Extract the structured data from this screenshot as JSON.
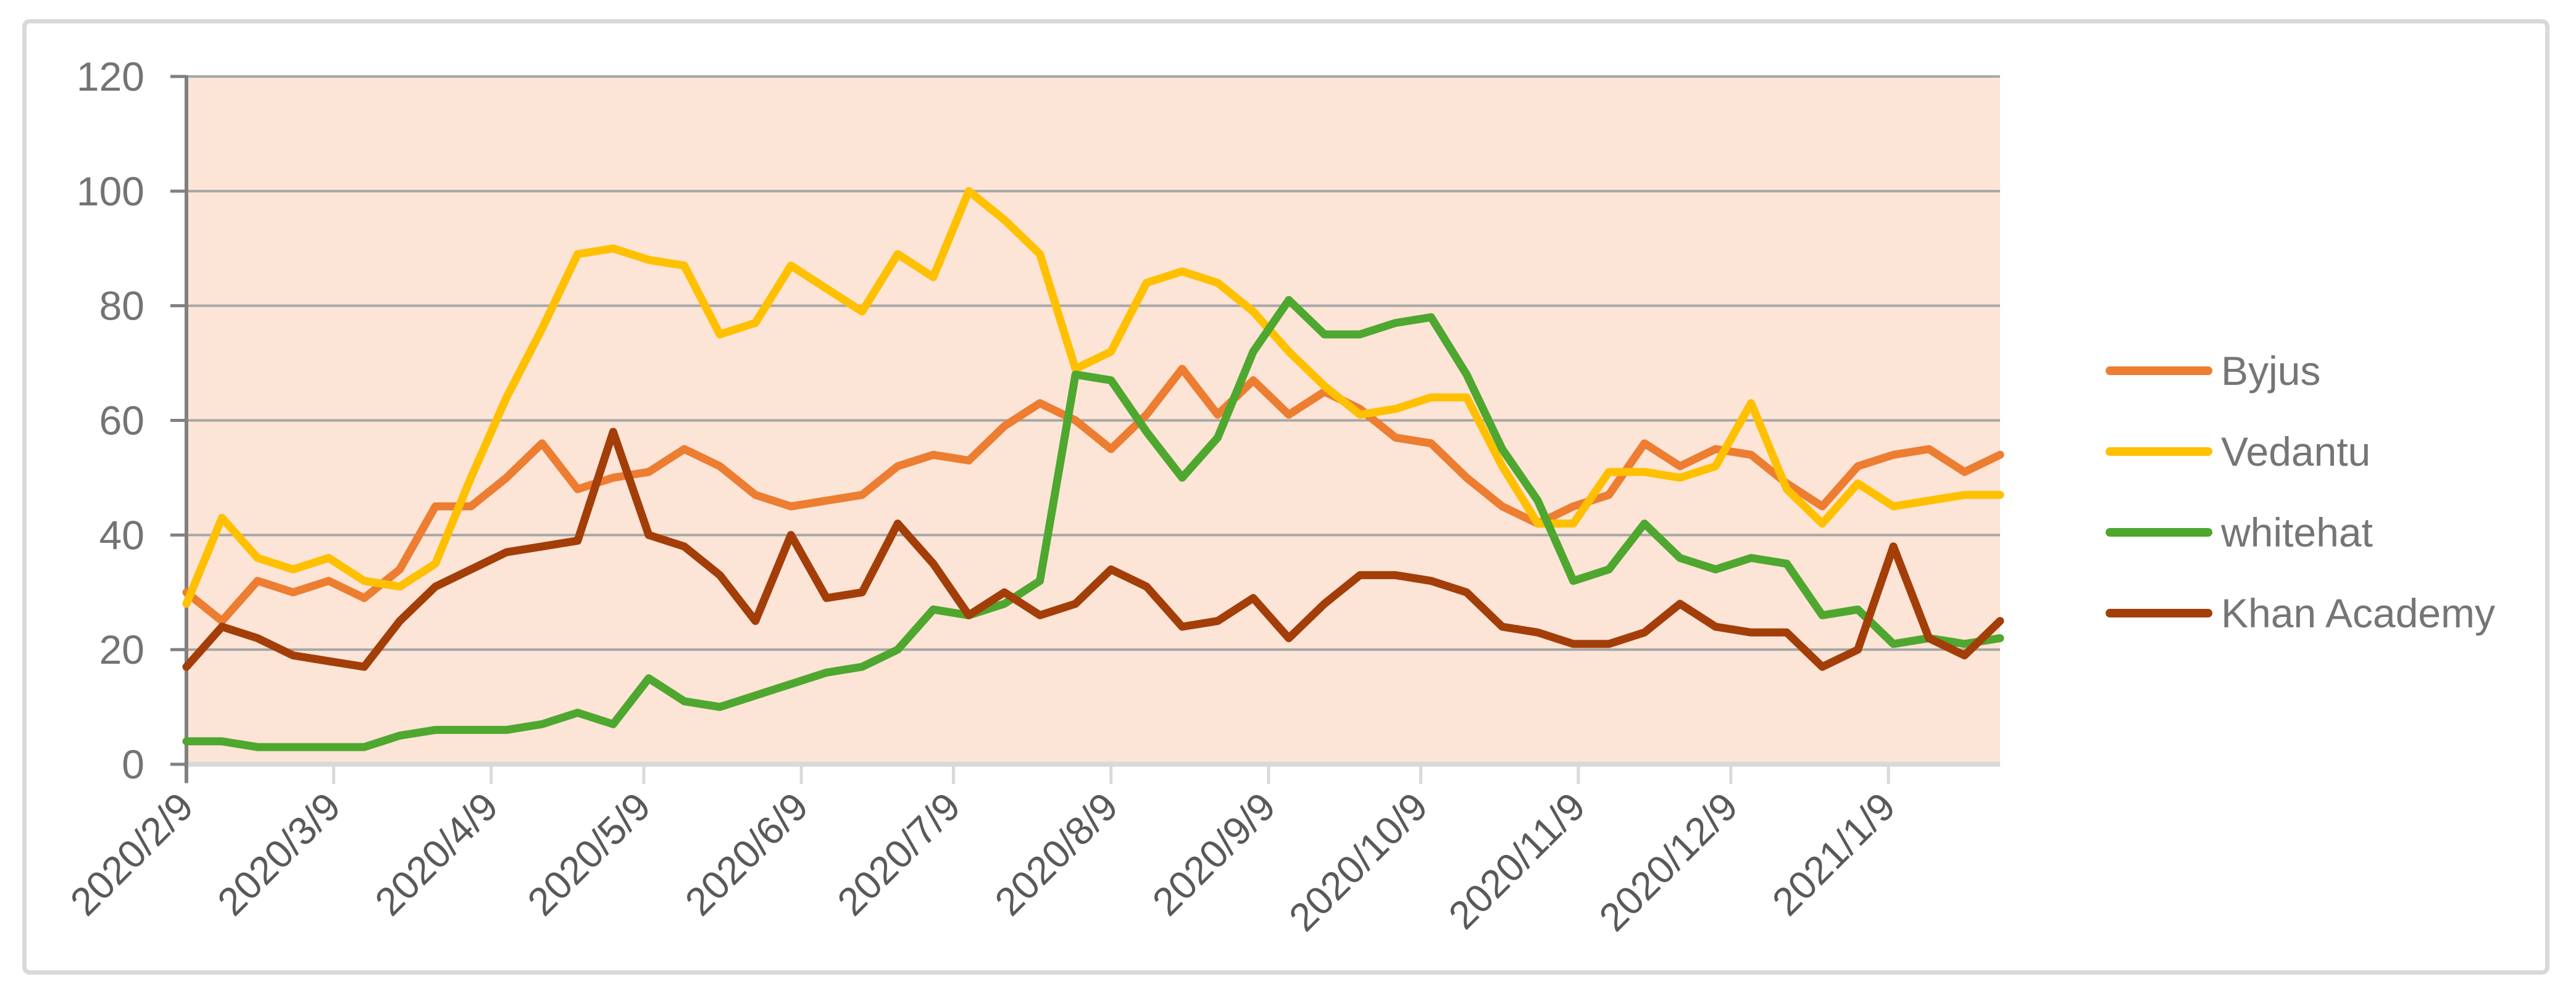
{
  "chart_data": {
    "type": "line",
    "title": "",
    "x_axis": {
      "tick_labels": [
        "2020/2/9",
        "2020/3/9",
        "2020/4/9",
        "2020/5/9",
        "2020/6/9",
        "2020/7/9",
        "2020/8/9",
        "2020/9/9",
        "2020/10/9",
        "2020/11/9",
        "2020/12/9",
        "2021/1/9"
      ],
      "tick_week_positions": [
        0,
        4.14,
        8.57,
        12.86,
        17.29,
        21.57,
        26,
        30.43,
        34.71,
        39.14,
        43.43,
        47.86
      ],
      "points_count": 52
    },
    "y_axis": {
      "min": 0,
      "max": 120,
      "step": 20,
      "tick_labels": [
        "0",
        "20",
        "40",
        "60",
        "80",
        "100",
        "120"
      ]
    },
    "series": [
      {
        "name": "Byjus",
        "color": "#ED7D31",
        "values": [
          30,
          25,
          32,
          30,
          32,
          29,
          34,
          45,
          45,
          50,
          56,
          48,
          50,
          51,
          55,
          52,
          47,
          45,
          46,
          47,
          52,
          54,
          53,
          59,
          63,
          60,
          55,
          61,
          69,
          61,
          67,
          61,
          65,
          62,
          57,
          56,
          50,
          45,
          42,
          45,
          47,
          56,
          52,
          55,
          54,
          49,
          45,
          52,
          54,
          55,
          51,
          54
        ]
      },
      {
        "name": "Vedantu",
        "color": "#FFC000",
        "values": [
          28,
          43,
          36,
          34,
          36,
          32,
          31,
          35,
          50,
          64,
          76,
          89,
          90,
          88,
          87,
          75,
          77,
          87,
          83,
          79,
          89,
          85,
          100,
          95,
          89,
          69,
          72,
          84,
          86,
          84,
          79,
          72,
          66,
          61,
          62,
          64,
          64,
          52,
          42,
          42,
          51,
          51,
          50,
          52,
          63,
          48,
          42,
          49,
          45,
          46,
          47,
          47
        ]
      },
      {
        "name": "whitehat",
        "color": "#4EA72E",
        "values": [
          4,
          4,
          3,
          3,
          3,
          3,
          5,
          6,
          6,
          6,
          7,
          9,
          7,
          15,
          11,
          10,
          12,
          14,
          16,
          17,
          20,
          27,
          26,
          28,
          32,
          68,
          67,
          58,
          50,
          57,
          72,
          81,
          75,
          75,
          77,
          78,
          68,
          55,
          46,
          32,
          34,
          42,
          36,
          34,
          36,
          35,
          26,
          27,
          21,
          22,
          21,
          22
        ]
      },
      {
        "name": "Khan Academy",
        "color": "#A33E09",
        "values": [
          17,
          24,
          22,
          19,
          18,
          17,
          25,
          31,
          34,
          37,
          38,
          39,
          58,
          40,
          38,
          33,
          25,
          40,
          29,
          30,
          42,
          35,
          26,
          30,
          26,
          28,
          34,
          31,
          24,
          25,
          29,
          22,
          28,
          33,
          33,
          32,
          30,
          24,
          23,
          21,
          21,
          23,
          28,
          24,
          23,
          23,
          17,
          20,
          38,
          22,
          19,
          25
        ]
      }
    ],
    "legend": {
      "position": "right",
      "items": [
        "Byjus",
        "Vedantu",
        "whitehat",
        "Khan Academy"
      ]
    },
    "style_colors": {
      "plot_bg": "#FCE4D6",
      "gridline": "#A6A6A6",
      "value_axis_line": "#808080",
      "category_axis_line": "#D9D9D9",
      "value_tick_label": "#737373",
      "category_tick_label": "#595959",
      "legend_text": "#757575",
      "frame_border": "#D9D9D9"
    }
  }
}
